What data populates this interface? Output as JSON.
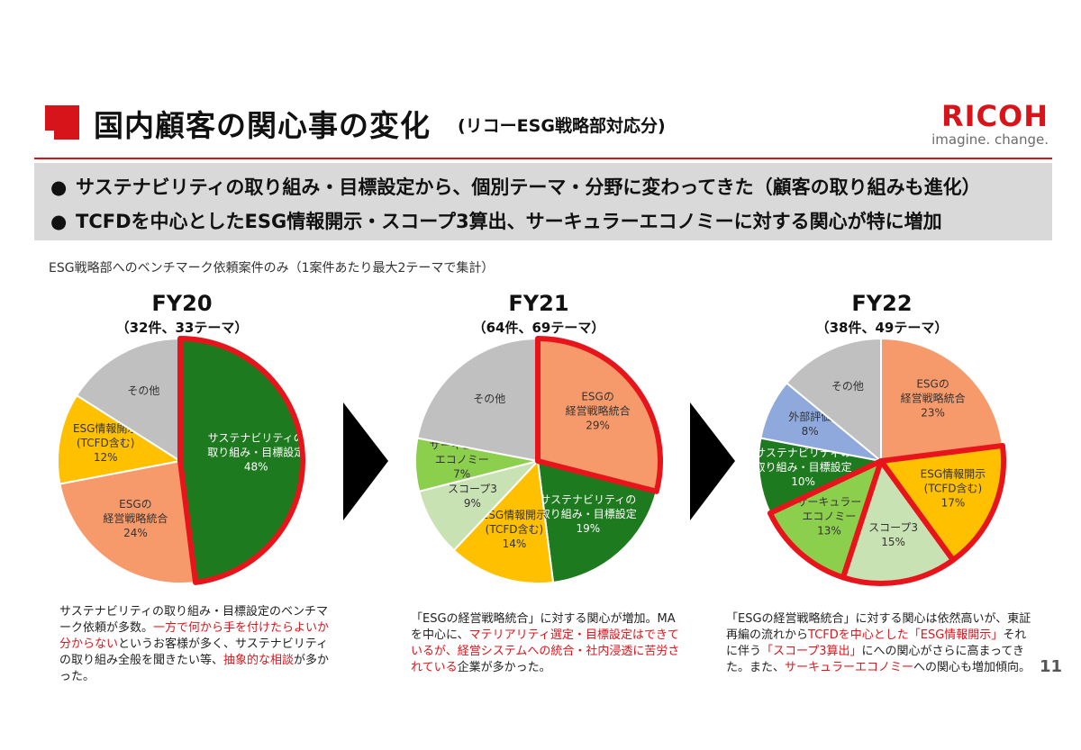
{
  "header": {
    "title": "国内顧客の関心事の変化",
    "subtitle": "(リコーESG戦略部対応分)",
    "logo_word": "RICOH",
    "logo_tagline": "imagine. change."
  },
  "bullets": [
    "サステナビリティの取り組み・目標設定から、個別テーマ・分野に変わってきた（顧客の取り組みも進化）",
    "TCFDを中心としたESG情報開示・スコープ3算出、サーキュラーエコノミーに対する関心が特に増加"
  ],
  "note": "ESG戦略部へのベンチマーク依頼案件のみ（1案件あたり最大2テーマで集計）",
  "colors": {
    "brand_red": "#d7141a",
    "highlight_red": "#e8141c",
    "dark_green": "#1e7a1e",
    "orange": "#f79a6b",
    "yellow": "#ffc000",
    "light_green": "#8ccf4d",
    "pale_green": "#c9e2b3",
    "gray": "#c0c0c0",
    "blue": "#8fa9dc"
  },
  "chart_data": [
    {
      "type": "pie",
      "title": "FY20",
      "subtitle": "（32件、33テーマ）",
      "slices": [
        {
          "label": "サステナビリティの取り組み・目標設定",
          "value": 48,
          "pct": "48%",
          "color": "#1e7a1e",
          "highlight": true
        },
        {
          "label": "ESGの経営戦略統合",
          "value": 24,
          "pct": "24%",
          "color": "#f79a6b",
          "highlight": false
        },
        {
          "label": "ESG情報開示(TCFD含む)",
          "value": 12,
          "pct": "12%",
          "color": "#ffc000",
          "highlight": false
        },
        {
          "label": "その他",
          "value": 16,
          "pct": "",
          "color": "#c0c0c0",
          "highlight": false
        }
      ]
    },
    {
      "type": "pie",
      "title": "FY21",
      "subtitle": "（64件、69テーマ）",
      "slices": [
        {
          "label": "ESGの経営戦略統合",
          "value": 29,
          "pct": "29%",
          "color": "#f79a6b",
          "highlight": true
        },
        {
          "label": "サステナビリティの取り組み・目標設定",
          "value": 19,
          "pct": "19%",
          "color": "#1e7a1e",
          "highlight": false
        },
        {
          "label": "ESG情報開示(TCFD含む)",
          "value": 14,
          "pct": "14%",
          "color": "#ffc000",
          "highlight": false
        },
        {
          "label": "スコープ3",
          "value": 9,
          "pct": "9%",
          "color": "#c9e2b3",
          "highlight": false
        },
        {
          "label": "サーキュラーエコノミー",
          "value": 7,
          "pct": "7%",
          "color": "#8ccf4d",
          "highlight": false
        },
        {
          "label": "その他",
          "value": 22,
          "pct": "",
          "color": "#c0c0c0",
          "highlight": false
        }
      ]
    },
    {
      "type": "pie",
      "title": "FY22",
      "subtitle": "（38件、49テーマ）",
      "slices": [
        {
          "label": "ESGの経営戦略統合",
          "value": 23,
          "pct": "23%",
          "color": "#f79a6b",
          "highlight": false
        },
        {
          "label": "ESG情報開示(TCFD含む)",
          "value": 17,
          "pct": "17%",
          "color": "#ffc000",
          "highlight": true
        },
        {
          "label": "スコープ3",
          "value": 15,
          "pct": "15%",
          "color": "#c9e2b3",
          "highlight": true
        },
        {
          "label": "サーキュラーエコノミー",
          "value": 13,
          "pct": "13%",
          "color": "#8ccf4d",
          "highlight": true
        },
        {
          "label": "サステナビリティの取り組み・目標設定",
          "value": 10,
          "pct": "10%",
          "color": "#1e7a1e",
          "highlight": false
        },
        {
          "label": "外部評価",
          "value": 8,
          "pct": "8%",
          "color": "#8fa9dc",
          "highlight": false
        },
        {
          "label": "その他",
          "value": 14,
          "pct": "",
          "color": "#c0c0c0",
          "highlight": false
        }
      ]
    }
  ],
  "descriptions": [
    [
      {
        "text": "サステナビリティの取り組み・目標設定のベンチマーク依頼が多数。",
        "red": false
      },
      {
        "text": "一方で何から手を付けたらよいか分からない",
        "red": true
      },
      {
        "text": "というお客様が多く、サステナビリティの取り組み全般を聞きたい等、",
        "red": false
      },
      {
        "text": "抽象的な相談",
        "red": true
      },
      {
        "text": "が多かった。",
        "red": false
      }
    ],
    [
      {
        "text": "「ESGの経営戦略統合」に対する関心が増加。MAを中心に、",
        "red": false
      },
      {
        "text": "マテリアリティ選定・目標設定はできているが、経営システムへの統合・社内浸透に苦労されている",
        "red": true
      },
      {
        "text": "企業が多かった。",
        "red": false
      }
    ],
    [
      {
        "text": "「ESGの経営戦略統合」に対する関心は依然高いが、東証再編の流れから",
        "red": false
      },
      {
        "text": "TCFDを中心とした「ESG情報開示」",
        "red": true
      },
      {
        "text": "それに伴う",
        "red": false
      },
      {
        "text": "「スコープ3算出」",
        "red": true
      },
      {
        "text": "にへの関心がさらに高まってきた。また、",
        "red": false
      },
      {
        "text": "サーキュラーエコノミー",
        "red": true
      },
      {
        "text": "への関心も増加傾向。",
        "red": false
      }
    ]
  ],
  "page_number": "11"
}
